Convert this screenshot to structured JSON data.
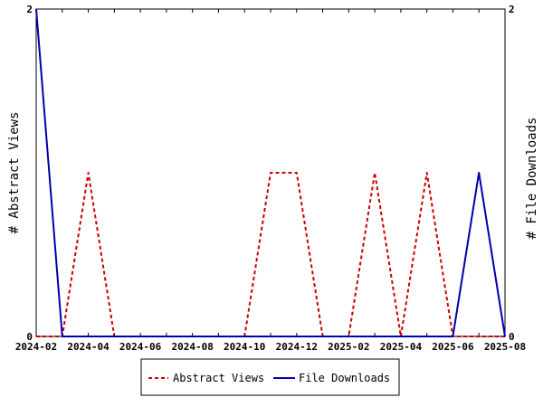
{
  "chart_data": {
    "type": "line",
    "x": [
      "2024-02",
      "2024-03",
      "2024-04",
      "2024-05",
      "2024-06",
      "2024-07",
      "2024-08",
      "2024-09",
      "2024-10",
      "2024-11",
      "2024-12",
      "2025-01",
      "2025-02",
      "2025-03",
      "2025-04",
      "2025-05",
      "2025-06",
      "2025-07",
      "2025-08"
    ],
    "x_tick_labels": [
      "2024-02",
      "2024-04",
      "2024-06",
      "2024-08",
      "2024-10",
      "2024-12",
      "2025-02",
      "2025-04",
      "2025-06",
      "2025-08"
    ],
    "series": [
      {
        "name": "Abstract Views",
        "values": [
          0,
          0,
          1,
          0,
          0,
          0,
          0,
          0,
          0,
          1,
          1,
          0,
          0,
          1,
          0,
          1,
          0,
          0,
          0
        ],
        "color": "#cc0000",
        "style": "dashed"
      },
      {
        "name": "File Downloads",
        "values": [
          2,
          0,
          0,
          0,
          0,
          0,
          0,
          0,
          0,
          0,
          0,
          0,
          0,
          0,
          0,
          0,
          0,
          1,
          0
        ],
        "color": "#0000aa",
        "style": "solid"
      }
    ],
    "ylabel": "# Abstract Views",
    "y2label": "# File Downloads",
    "ylim": [
      0,
      2
    ],
    "y_tick_labels": [
      "0",
      "2"
    ],
    "y2_tick_labels": [
      "0",
      "2"
    ],
    "grid": false,
    "legend_position": "bottom"
  }
}
